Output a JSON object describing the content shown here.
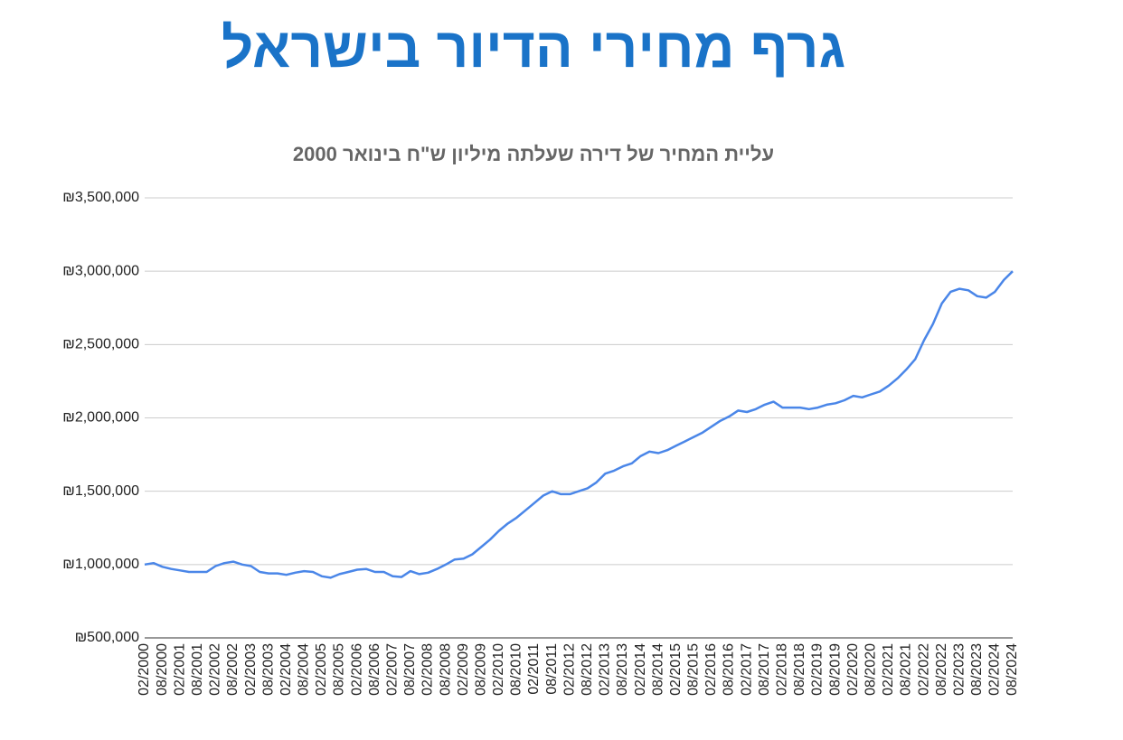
{
  "header": {
    "title": "גרף מחירי הדיור בישראל"
  },
  "chart_data": {
    "type": "line",
    "title": "עליית המחיר של דירה שעלתה מיליון ש\"ח בינואר 2000",
    "categories": [
      "02/2000",
      null,
      "08/2000",
      null,
      "02/2001",
      null,
      "08/2001",
      null,
      "02/2002",
      null,
      "08/2002",
      null,
      "02/2003",
      null,
      "08/2003",
      null,
      "02/2004",
      null,
      "08/2004",
      null,
      "02/2005",
      null,
      "08/2005",
      null,
      "02/2006",
      null,
      "08/2006",
      null,
      "02/2007",
      null,
      "08/2007",
      null,
      "02/2008",
      null,
      "08/2008",
      null,
      "02/2009",
      null,
      "08/2009",
      null,
      "02/2010",
      null,
      "08/2010",
      null,
      "02/2011",
      null,
      "08/2011",
      null,
      "02/2012",
      null,
      "08/2012",
      null,
      "02/2013",
      null,
      "08/2013",
      null,
      "02/2014",
      null,
      "08/2014",
      null,
      "02/2015",
      null,
      "08/2015",
      null,
      "02/2016",
      null,
      "08/2016",
      null,
      "02/2017",
      null,
      "08/2017",
      null,
      "02/2018",
      null,
      "08/2018",
      null,
      "02/2019",
      null,
      "08/2019",
      null,
      "02/2020",
      null,
      "08/2020",
      null,
      "02/2021",
      null,
      "08/2021",
      null,
      "02/2022",
      null,
      "08/2022",
      null,
      "02/2023",
      null,
      "08/2023",
      null,
      "02/2024",
      null,
      "08/2024"
    ],
    "values": [
      1000000,
      1010000,
      985000,
      970000,
      960000,
      950000,
      950000,
      950000,
      990000,
      1010000,
      1020000,
      1000000,
      990000,
      950000,
      940000,
      940000,
      930000,
      945000,
      955000,
      950000,
      920000,
      910000,
      935000,
      950000,
      965000,
      970000,
      950000,
      950000,
      920000,
      915000,
      955000,
      935000,
      945000,
      970000,
      1000000,
      1035000,
      1040000,
      1070000,
      1120000,
      1170000,
      1230000,
      1280000,
      1320000,
      1370000,
      1420000,
      1470000,
      1500000,
      1480000,
      1480000,
      1500000,
      1520000,
      1560000,
      1620000,
      1640000,
      1670000,
      1690000,
      1740000,
      1770000,
      1760000,
      1780000,
      1810000,
      1840000,
      1870000,
      1900000,
      1940000,
      1980000,
      2010000,
      2050000,
      2040000,
      2060000,
      2090000,
      2110000,
      2070000,
      2070000,
      2070000,
      2060000,
      2070000,
      2090000,
      2100000,
      2120000,
      2150000,
      2140000,
      2160000,
      2180000,
      2220000,
      2270000,
      2330000,
      2400000,
      2530000,
      2640000,
      2780000,
      2860000,
      2880000,
      2870000,
      2830000,
      2820000,
      2860000,
      2940000,
      3000000
    ],
    "color": "#4a86e8",
    "ylim": [
      500000,
      3500000
    ],
    "yticks": [
      {
        "value": 500000,
        "label": "₪500,000"
      },
      {
        "value": 1000000,
        "label": "₪1,000,000"
      },
      {
        "value": 1500000,
        "label": "₪1,500,000"
      },
      {
        "value": 2000000,
        "label": "₪2,000,000"
      },
      {
        "value": 2500000,
        "label": "₪2,500,000"
      },
      {
        "value": 3000000,
        "label": "₪3,000,000"
      },
      {
        "value": 3500000,
        "label": "₪3,500,000"
      }
    ],
    "grid": true
  }
}
